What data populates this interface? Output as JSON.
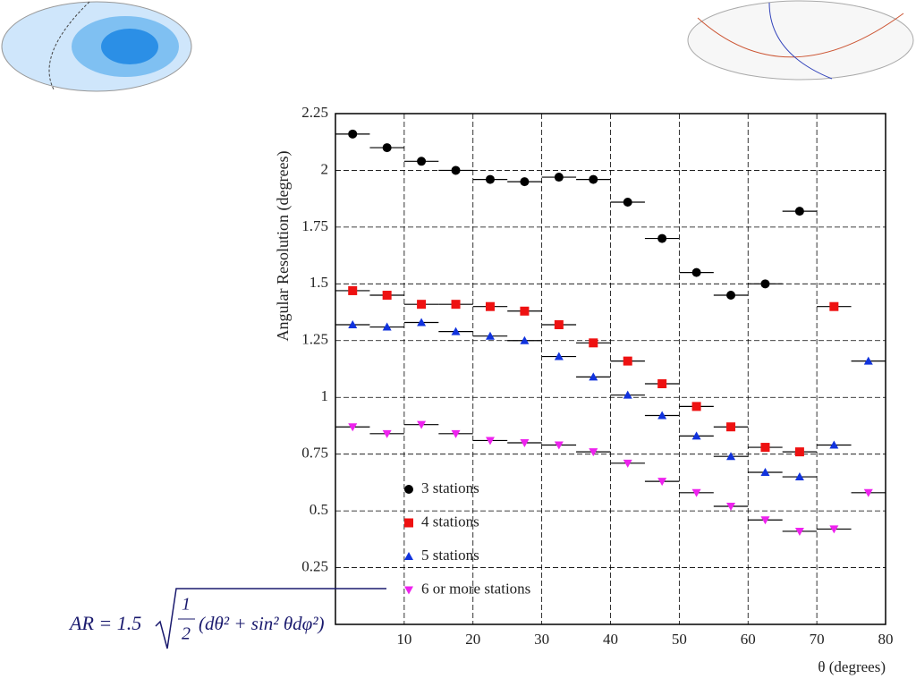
{
  "chart_data": {
    "type": "scatter",
    "ylabel": "Angular Resolution (degrees)",
    "xlabel": "θ (degrees)",
    "x": [
      2.5,
      7.5,
      12.5,
      17.5,
      22.5,
      27.5,
      32.5,
      37.5,
      42.5,
      47.5,
      52.5,
      57.5,
      62.5,
      67.5,
      72.5,
      77.5
    ],
    "xerr": 2.5,
    "xlim": [
      0,
      80
    ],
    "xticks": [
      10,
      20,
      30,
      40,
      50,
      60,
      70,
      80
    ],
    "ylim": [
      0,
      2.25
    ],
    "yticks": [
      0.25,
      0.5,
      0.75,
      1,
      1.25,
      1.5,
      1.75,
      2,
      2.25
    ],
    "grid": true,
    "legend": "lower left",
    "series": [
      {
        "name": "3 stations",
        "color": "#000000",
        "marker": "circle",
        "values": [
          2.16,
          2.1,
          2.04,
          2.0,
          1.96,
          1.95,
          1.97,
          1.96,
          1.86,
          1.7,
          1.55,
          1.45,
          1.5,
          1.82,
          null,
          null
        ]
      },
      {
        "name": "4 stations",
        "color": "#ee1111",
        "marker": "square",
        "values": [
          1.47,
          1.45,
          1.41,
          1.41,
          1.4,
          1.38,
          1.32,
          1.24,
          1.16,
          1.06,
          0.96,
          0.87,
          0.78,
          0.76,
          1.4,
          null
        ]
      },
      {
        "name": "5 stations",
        "color": "#1133dd",
        "marker": "triangle",
        "values": [
          1.32,
          1.31,
          1.33,
          1.29,
          1.27,
          1.25,
          1.18,
          1.09,
          1.01,
          0.92,
          0.83,
          0.74,
          0.67,
          0.65,
          0.79,
          1.16
        ]
      },
      {
        "name": "6 or more stations",
        "color": "#ee22ee",
        "marker": "triangle-down",
        "values": [
          0.87,
          0.84,
          0.88,
          0.84,
          0.81,
          0.8,
          0.79,
          0.76,
          0.71,
          0.63,
          0.58,
          0.52,
          0.46,
          0.41,
          0.42,
          0.58
        ]
      }
    ],
    "formula": {
      "lhs": "AR = 1.5",
      "num": "1",
      "den": "2",
      "body": "(dθ² + sin² θdφ²)"
    }
  }
}
